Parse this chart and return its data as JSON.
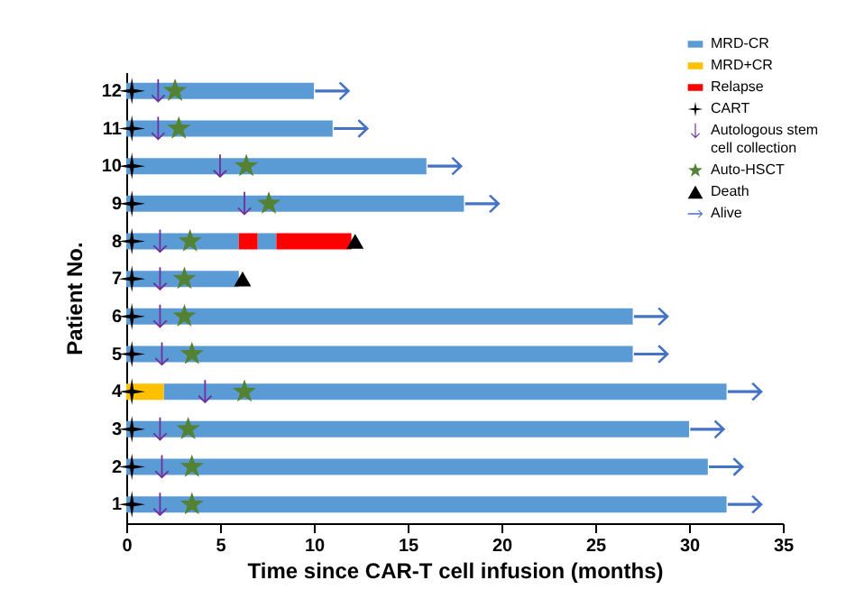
{
  "chart_data": {
    "type": "bar",
    "orientation": "horizontal",
    "xlabel": "Time since CAR-T cell infusion (months)",
    "ylabel": "Patient No.",
    "categories": [
      "12",
      "11",
      "10",
      "9",
      "8",
      "7",
      "6",
      "5",
      "4",
      "3",
      "2",
      "1"
    ],
    "xlim": [
      0,
      35
    ],
    "xticks": [
      0,
      5,
      10,
      15,
      20,
      25,
      30,
      35
    ],
    "grid": false,
    "legend": "top right",
    "series": [
      {
        "name": "MRD-CR",
        "color": "#5b9bd5",
        "base": [
          0,
          0,
          0,
          0,
          0,
          0,
          0,
          0,
          2,
          0,
          0,
          0
        ],
        "values": [
          10,
          11,
          16,
          18,
          6,
          6,
          27,
          27,
          30,
          30,
          31,
          32
        ]
      },
      {
        "color": "#5b9bd5",
        "base": [
          null,
          null,
          null,
          null,
          7,
          null,
          null,
          null,
          null,
          null,
          null,
          null
        ],
        "values": [
          null,
          null,
          null,
          null,
          1,
          null,
          null,
          null,
          null,
          null,
          null,
          null
        ]
      },
      {
        "name": "MRD+CR",
        "color": "#ffc000",
        "base": [
          null,
          null,
          null,
          null,
          null,
          null,
          null,
          null,
          0,
          null,
          null,
          null
        ],
        "values": [
          null,
          null,
          null,
          null,
          null,
          null,
          null,
          null,
          2,
          null,
          null,
          null
        ]
      },
      {
        "name": "Relapse",
        "color": "#ff0000",
        "base": [
          null,
          null,
          null,
          null,
          6,
          null,
          null,
          null,
          null,
          null,
          null,
          null
        ],
        "values": [
          null,
          null,
          null,
          null,
          1,
          null,
          null,
          null,
          null,
          null,
          null,
          null
        ]
      },
      {
        "color": "#ff0000",
        "base": [
          null,
          null,
          null,
          null,
          8,
          null,
          null,
          null,
          null,
          null,
          null,
          null
        ],
        "values": [
          null,
          null,
          null,
          null,
          4,
          null,
          null,
          null,
          null,
          null,
          null,
          null
        ]
      },
      {
        "name": "CART",
        "type": "scatter",
        "marker": "cross",
        "color": "#000000",
        "values": [
          0.3,
          0.3,
          0.3,
          0.3,
          0.3,
          0.3,
          0.3,
          0.3,
          0.3,
          0.3,
          0.3,
          0.3
        ]
      },
      {
        "name": "Autologous stem cell collection",
        "type": "scatter",
        "color": "#7030a0",
        "values": [
          1.7,
          1.7,
          5.0,
          6.3,
          1.8,
          1.8,
          1.8,
          1.9,
          4.2,
          1.8,
          1.9,
          1.8
        ]
      },
      {
        "name": "Auto-HSCT",
        "type": "scatter",
        "marker": "star",
        "color": "#548235",
        "values": [
          2.6,
          2.8,
          6.4,
          7.6,
          3.4,
          3.1,
          3.1,
          3.5,
          6.3,
          3.3,
          3.5,
          3.5
        ]
      },
      {
        "name": "Death",
        "type": "scatter",
        "marker": "triangle",
        "color": "#000000",
        "values": [
          null,
          null,
          null,
          null,
          12.2,
          6.2,
          null,
          null,
          null,
          null,
          null,
          null
        ]
      },
      {
        "name": "Alive",
        "type": "scatter",
        "color": "#4472c4",
        "values": [
          11,
          12,
          17,
          19,
          null,
          null,
          28,
          28,
          33,
          31,
          32,
          33
        ]
      }
    ]
  }
}
